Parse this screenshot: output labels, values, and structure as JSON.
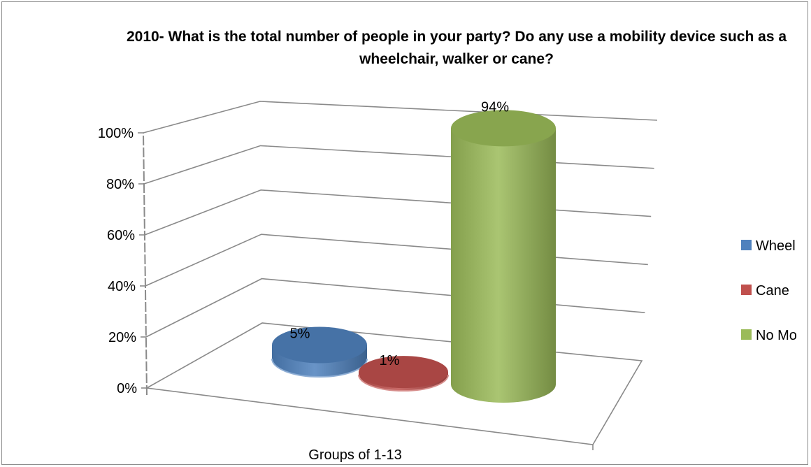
{
  "chart_data": {
    "type": "bar",
    "style": "3d-cylinder",
    "title": "2010- What is the total number of people in your party? Do any use a mobility device such as a wheelchair, walker or cane?",
    "categories": [
      "Groups of 1-13"
    ],
    "xlabel": "Groups of 1-13",
    "ylim": [
      0,
      100
    ],
    "ytick_values": [
      0,
      20,
      40,
      60,
      80,
      100
    ],
    "ytick_labels": [
      "0%",
      "20%",
      "40%",
      "60%",
      "80%",
      "100%"
    ],
    "grid": true,
    "legend_position": "right",
    "series": [
      {
        "name": "Wheel",
        "values": [
          5
        ],
        "label": "5%",
        "color": "#4f81bd"
      },
      {
        "name": "Cane",
        "values": [
          1
        ],
        "label": "1%",
        "color": "#c0504d"
      },
      {
        "name": "No Mo",
        "values": [
          94
        ],
        "label": "94%",
        "color": "#9bbb59"
      }
    ]
  }
}
